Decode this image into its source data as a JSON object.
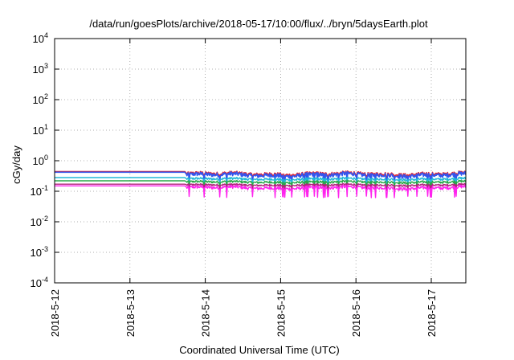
{
  "chart_data": {
    "type": "line",
    "title": "/data/run/goesPlots/archive/2018-05-17/10:00/flux/../bryn/5daysEarth.plot",
    "xlabel": "Coordinated Universal Time (UTC)",
    "ylabel": "cGy/day",
    "y_scale": "log",
    "ylim": [
      0.0001,
      10000
    ],
    "x_scale": "date",
    "xlim": [
      "2018-05-12T00:00",
      "2018-05-17T11:00"
    ],
    "x_ticks": [
      "2018-5-12",
      "2018-5-13",
      "2018-5-14",
      "2018-5-15",
      "2018-5-16",
      "2018-5-17"
    ],
    "x_tick_dates": [
      "2018-05-12T00:00",
      "2018-05-13T00:00",
      "2018-05-14T00:00",
      "2018-05-15T00:00",
      "2018-05-16T00:00",
      "2018-05-17T00:00"
    ],
    "y_ticks": [
      {
        "value": 0.0001,
        "base": "10",
        "exp": "-4"
      },
      {
        "value": 0.001,
        "base": "10",
        "exp": "-3"
      },
      {
        "value": 0.01,
        "base": "10",
        "exp": "-2"
      },
      {
        "value": 0.1,
        "base": "10",
        "exp": "-1"
      },
      {
        "value": 1,
        "base": "10",
        "exp": "0"
      },
      {
        "value": 10,
        "base": "10",
        "exp": "1"
      },
      {
        "value": 100,
        "base": "10",
        "exp": "2"
      },
      {
        "value": 1000,
        "base": "10",
        "exp": "3"
      },
      {
        "value": 10000,
        "base": "10",
        "exp": "4"
      }
    ],
    "grid": true,
    "series": [
      {
        "color": "#e8242b",
        "width": 1.6,
        "x_start": "2018-05-12T00:00",
        "gap_from": "2018-05-13T17:30",
        "gap_to": "2018-05-13T18:00",
        "x_end": "2018-05-17T11:00",
        "before": 0.44,
        "after_mean": 0.37,
        "after_min": 0.27,
        "after_max": 0.46
      },
      {
        "color": "#3355ee",
        "width": 1.6,
        "x_start": "2018-05-12T00:00",
        "gap_from": "2018-05-13T17:30",
        "gap_to": "2018-05-13T18:00",
        "x_end": "2018-05-17T11:00",
        "before": 0.42,
        "after_mean": 0.34,
        "after_min": 0.19,
        "after_max": 0.44
      },
      {
        "color": "#22b8d8",
        "width": 1.4,
        "x_start": "2018-05-12T00:00",
        "gap_from": "2018-05-13T17:30",
        "gap_to": "2018-05-13T18:00",
        "x_end": "2018-05-17T11:00",
        "before": 0.28,
        "after_mean": 0.25,
        "after_min": 0.15,
        "after_max": 0.29
      },
      {
        "color": "#2aa84a",
        "width": 1.4,
        "x_start": "2018-05-12T00:00",
        "gap_from": "2018-05-13T17:30",
        "gap_to": "2018-05-13T18:00",
        "x_end": "2018-05-17T11:00",
        "before": 0.22,
        "after_mean": 0.2,
        "after_min": 0.12,
        "after_max": 0.23
      },
      {
        "color": "#b0247a",
        "width": 1.4,
        "x_start": "2018-05-12T00:00",
        "gap_from": "2018-05-13T17:30",
        "gap_to": "2018-05-13T18:00",
        "x_end": "2018-05-17T11:00",
        "before": 0.17,
        "after_mean": 0.16,
        "after_min": 0.1,
        "after_max": 0.18
      },
      {
        "color": "#ff22ee",
        "width": 1.4,
        "x_start": "2018-05-12T00:00",
        "gap_from": "2018-05-13T17:30",
        "gap_to": "2018-05-13T18:00",
        "x_end": "2018-05-17T11:00",
        "before": 0.15,
        "after_mean": 0.13,
        "after_min": 0.055,
        "after_max": 0.16
      }
    ]
  }
}
